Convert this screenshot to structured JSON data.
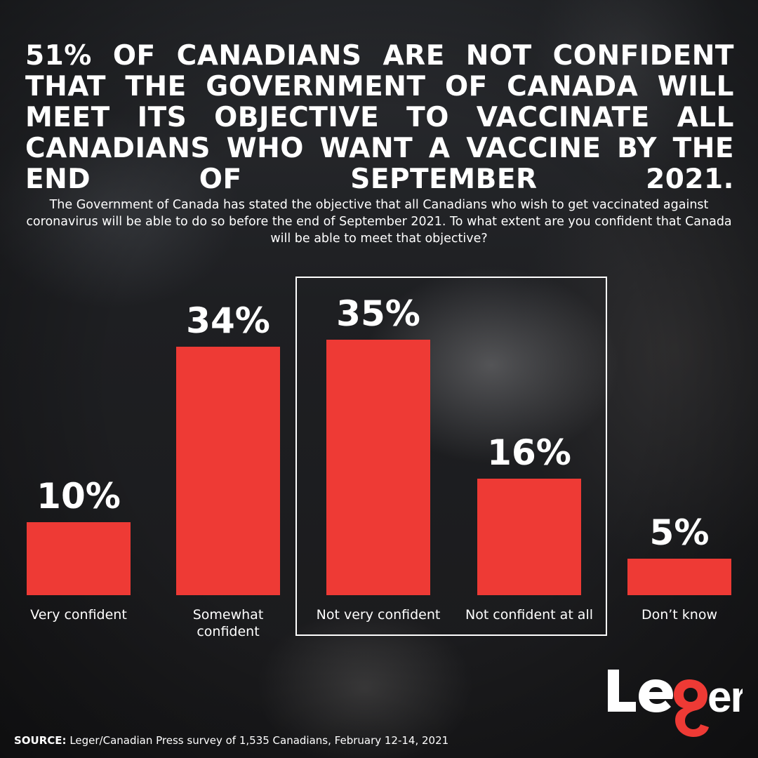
{
  "headline": "51% of Canadians are not confident that the Government of Canada will meet its objective to vaccinate all Canadians who want a vaccine by the end of September 2021.",
  "subtitle": "The Government of Canada has stated the objective that all Canadians who wish to get vaccinated against coronavirus will be able to do so before the end of September 2021. To what extent are you confident that Canada will be able to meet that objective?",
  "colors": {
    "bar": "#ee3a35",
    "text": "#ffffff",
    "background": "#1b1c1e"
  },
  "chart_data": {
    "type": "bar",
    "categories": [
      "Very confident",
      "Somewhat confident",
      "Not very confident",
      "Not confident at all",
      "Don’t know"
    ],
    "values": [
      10,
      34,
      35,
      16,
      5
    ],
    "value_labels": [
      "10%",
      "34%",
      "35%",
      "16%",
      "5%"
    ],
    "unit": "%",
    "highlighted_categories": [
      "Not very confident",
      "Not confident at all"
    ],
    "grid": false,
    "legend": "none"
  },
  "logo": {
    "text": "Leger"
  },
  "source": {
    "label": "SOURCE:",
    "text": " Leger/Canadian Press survey of 1,535 Canadians, February 12-14, 2021"
  }
}
